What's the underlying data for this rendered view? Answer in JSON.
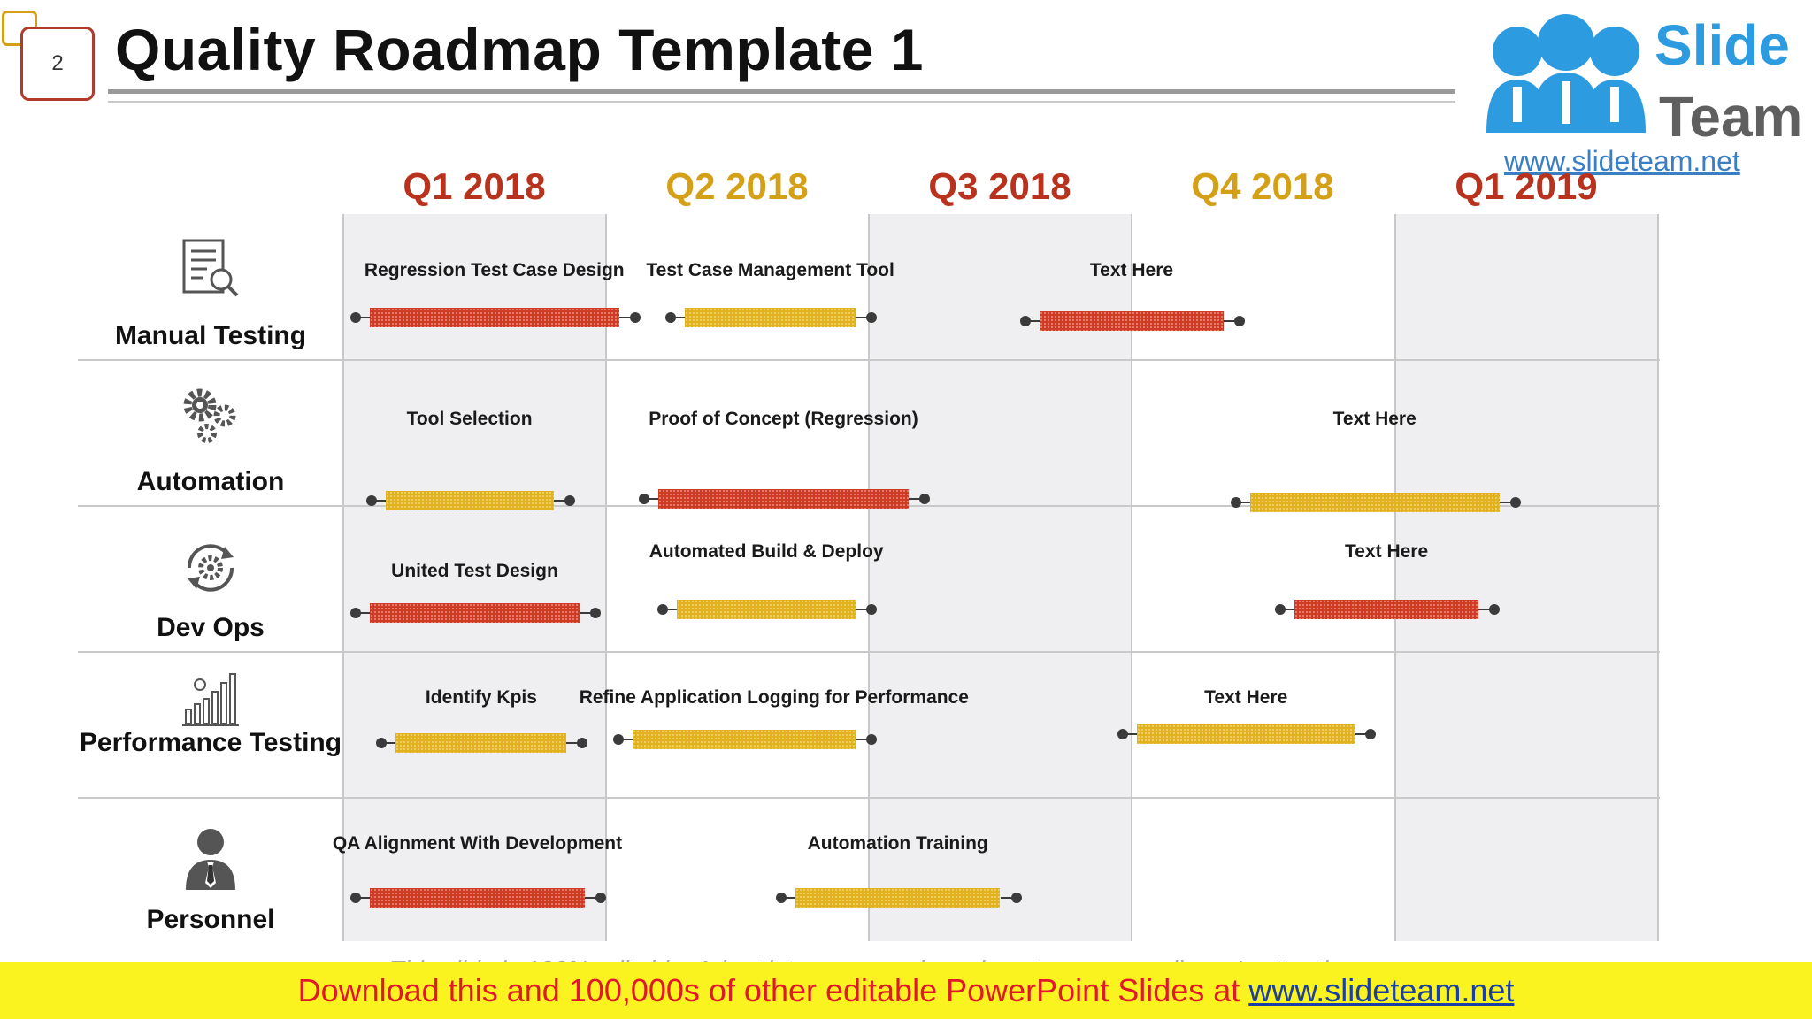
{
  "slide": {
    "number": "2",
    "title": "Quality Roadmap Template 1"
  },
  "logo": {
    "slide_word": "Slide",
    "team_word": "Team",
    "url": "www.slideteam.net",
    "icon": "people-group-icon",
    "brand_color": "#2d9be0"
  },
  "colors": {
    "red": "#cf3a22",
    "yellow": "#e2b21c",
    "quarter_red": "#b8321d",
    "quarter_yellow": "#d4a017"
  },
  "quarters": [
    {
      "label": "Q1 2018",
      "color": "red"
    },
    {
      "label": "Q2 2018",
      "color": "yellow"
    },
    {
      "label": "Q3 2018",
      "color": "red"
    },
    {
      "label": "Q4 2018",
      "color": "yellow"
    },
    {
      "label": "Q1 2019",
      "color": "red"
    }
  ],
  "rows": [
    {
      "label": "Manual Testing",
      "icon": "document-search-icon",
      "tasks": [
        {
          "label": "Regression Test Case Design",
          "color": "red",
          "start": 0.1,
          "end": 1.05
        },
        {
          "label": "Test Case Management Tool",
          "color": "yellow",
          "start": 1.3,
          "end": 1.95
        },
        {
          "label": "Text Here",
          "color": "red",
          "start": 2.65,
          "end": 3.35
        }
      ]
    },
    {
      "label": "Automation",
      "icon": "gears-icon",
      "tasks": [
        {
          "label": "Tool Selection",
          "color": "yellow",
          "start": 0.16,
          "end": 0.8
        },
        {
          "label": "Proof of Concept (Regression)",
          "color": "red",
          "start": 1.2,
          "end": 2.15
        },
        {
          "label": "Text Here",
          "color": "yellow",
          "start": 3.45,
          "end": 4.4
        }
      ]
    },
    {
      "label": "Dev Ops",
      "icon": "devops-cycle-icon",
      "tasks": [
        {
          "label": "United Test Design",
          "color": "red",
          "start": 0.1,
          "end": 0.9
        },
        {
          "label": "Automated Build & Deploy",
          "color": "yellow",
          "start": 1.27,
          "end": 1.95
        },
        {
          "label": "Text Here",
          "color": "red",
          "start": 3.62,
          "end": 4.32
        }
      ]
    },
    {
      "label": "Performance Testing",
      "icon": "bar-chart-growth-icon",
      "tasks": [
        {
          "label": "Identify Kpis",
          "color": "yellow",
          "start": 0.2,
          "end": 0.85
        },
        {
          "label": "Refine Application Logging for Performance",
          "color": "yellow",
          "start": 1.1,
          "end": 1.95
        },
        {
          "label": "Text Here",
          "color": "yellow",
          "start": 3.02,
          "end": 3.85
        }
      ]
    },
    {
      "label": "Personnel",
      "icon": "person-tie-icon",
      "tasks": [
        {
          "label": "QA Alignment With Development",
          "color": "red",
          "start": 0.1,
          "end": 0.92
        },
        {
          "label": "Automation Training",
          "color": "yellow",
          "start": 1.72,
          "end": 2.5
        }
      ]
    }
  ],
  "footer": {
    "ghost_text": "This slide is 100% editable. Adapt it to your needs and capture your audience's attention.",
    "banner_text": "Download this and 100,000s of other editable PowerPoint Slides at ",
    "banner_link": "www.slideteam.net"
  }
}
